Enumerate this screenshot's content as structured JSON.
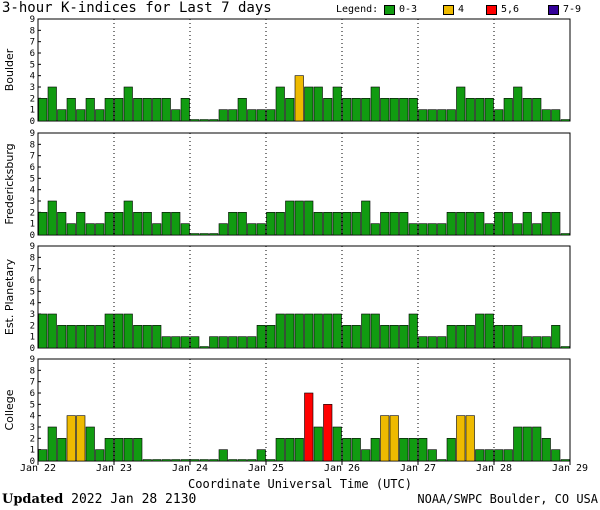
{
  "title": "3-hour K-indices for Last 7 days",
  "legend": {
    "label": "Legend:",
    "items": [
      {
        "name": "0-3",
        "color": "#119B11"
      },
      {
        "name": "4",
        "color": "#EEBA00"
      },
      {
        "name": "5,6",
        "color": "#FF0000"
      },
      {
        "name": "7-9",
        "color": "#330099"
      }
    ]
  },
  "footer": {
    "updated_label": "Updated",
    "updated_value": "2022 Jan 28 2130",
    "credit": "NOAA/SWPC Boulder, CO USA"
  },
  "chart_data": {
    "type": "bar",
    "xlabel": "Coordinate Universal Time (UTC)",
    "x_ticks": [
      "Jan 22",
      "Jan 23",
      "Jan 24",
      "Jan 25",
      "Jan 26",
      "Jan 27",
      "Jan 28",
      "Jan 29"
    ],
    "ylim": [
      0,
      9
    ],
    "y_ticks": [
      0,
      1,
      2,
      3,
      4,
      5,
      6,
      7,
      8,
      9
    ],
    "interval_hours": 3,
    "panels": [
      {
        "name": "Boulder",
        "values": [
          2,
          3,
          1,
          2,
          1,
          2,
          1,
          2,
          2,
          3,
          2,
          2,
          2,
          2,
          1,
          2,
          0,
          0,
          0,
          1,
          1,
          2,
          1,
          1,
          1,
          3,
          2,
          4,
          3,
          3,
          2,
          3,
          2,
          2,
          2,
          3,
          2,
          2,
          2,
          2,
          1,
          1,
          1,
          1,
          3,
          2,
          2,
          2,
          1,
          2,
          3,
          2,
          2,
          1,
          1,
          0
        ]
      },
      {
        "name": "Fredericksburg",
        "values": [
          2,
          3,
          2,
          1,
          2,
          1,
          1,
          2,
          2,
          3,
          2,
          2,
          1,
          2,
          2,
          1,
          0,
          0,
          0,
          1,
          2,
          2,
          1,
          1,
          2,
          2,
          3,
          3,
          3,
          2,
          2,
          2,
          2,
          2,
          3,
          1,
          2,
          2,
          2,
          1,
          1,
          1,
          1,
          2,
          2,
          2,
          2,
          1,
          2,
          2,
          1,
          2,
          1,
          2,
          2,
          0
        ]
      },
      {
        "name": "Est. Planetary",
        "values": [
          3,
          3,
          2,
          2,
          2,
          2,
          2,
          3,
          3,
          3,
          2,
          2,
          2,
          1,
          1,
          1,
          1,
          0,
          1,
          1,
          1,
          1,
          1,
          2,
          2,
          3,
          3,
          3,
          3,
          3,
          3,
          3,
          2,
          2,
          3,
          3,
          2,
          2,
          2,
          3,
          1,
          1,
          1,
          2,
          2,
          2,
          3,
          3,
          2,
          2,
          2,
          1,
          1,
          1,
          2,
          0
        ]
      },
      {
        "name": "College",
        "values": [
          1,
          3,
          2,
          4,
          4,
          3,
          1,
          2,
          2,
          2,
          2,
          0,
          0,
          0,
          0,
          0,
          0,
          0,
          0,
          1,
          0,
          0,
          0,
          1,
          0,
          2,
          2,
          2,
          6,
          3,
          5,
          3,
          2,
          2,
          1,
          2,
          4,
          4,
          2,
          2,
          2,
          1,
          0,
          2,
          4,
          4,
          1,
          1,
          1,
          1,
          3,
          3,
          3,
          2,
          1,
          0
        ]
      }
    ]
  }
}
